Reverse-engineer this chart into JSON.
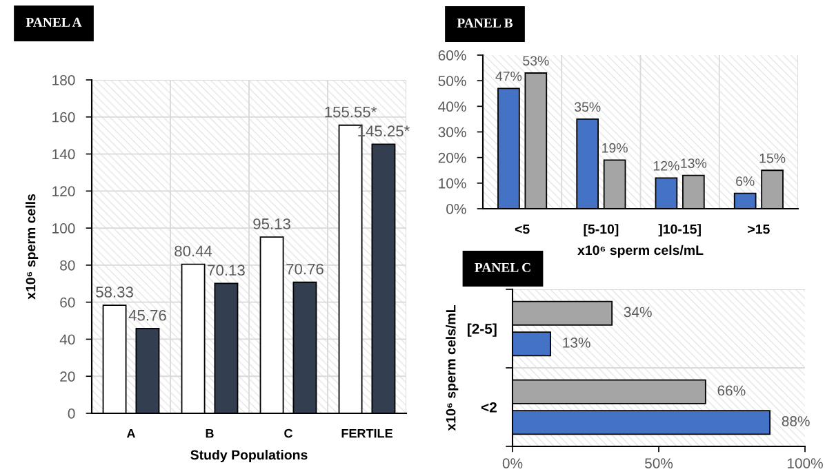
{
  "chart_data": [
    {
      "type": "bar",
      "title": "PANEL A",
      "xlabel": "Study Populations",
      "ylabel": "x10⁶ sperm cells",
      "categories": [
        "A",
        "B",
        "C",
        "FERTILE"
      ],
      "series": [
        {
          "color": "#ffffff",
          "values": [
            58.33,
            80.44,
            95.13,
            155.55
          ],
          "value_labels": [
            "58.33",
            "80.44",
            "95.13",
            "155.55*"
          ]
        },
        {
          "color": "#333f50",
          "values": [
            45.76,
            70.13,
            70.76,
            145.25
          ],
          "value_labels": [
            "45.76",
            "70.13",
            "70.76",
            "145.25*"
          ]
        }
      ],
      "ylim": [
        0,
        180
      ],
      "yticks": [
        0,
        20,
        40,
        60,
        80,
        100,
        120,
        140,
        160,
        180
      ],
      "grid": true
    },
    {
      "type": "bar",
      "title": "PANEL B",
      "xlabel": "x10⁶ sperm cels/mL",
      "categories": [
        "<5",
        "[5-10]",
        "]10-15]",
        ">15"
      ],
      "series": [
        {
          "color": "#4472c4",
          "values": [
            47,
            35,
            12,
            6
          ],
          "value_labels": [
            "47%",
            "35%",
            "12%",
            "6%"
          ]
        },
        {
          "color": "#a5a5a5",
          "values": [
            53,
            19,
            13,
            15
          ],
          "value_labels": [
            "53%",
            "19%",
            "13%",
            "15%"
          ]
        }
      ],
      "ylim": [
        0,
        60
      ],
      "yticks": [
        {
          "value": 0,
          "label": "0%"
        },
        {
          "value": 10,
          "label": "10%"
        },
        {
          "value": 20,
          "label": "20%"
        },
        {
          "value": 30,
          "label": "30%"
        },
        {
          "value": 40,
          "label": "40%"
        },
        {
          "value": 50,
          "label": "50%"
        },
        {
          "value": 60,
          "label": "60%"
        }
      ],
      "grid": "x"
    },
    {
      "type": "bar",
      "title": "PANEL C",
      "ylabel": "x10⁶ sperm cels/mL",
      "orientation": "horizontal",
      "categories": [
        "[2-5]",
        "<2"
      ],
      "series": [
        {
          "color": "#4472c4",
          "values": [
            13,
            88
          ],
          "value_labels": [
            "13%",
            "88%"
          ]
        },
        {
          "color": "#a5a5a5",
          "values": [
            34,
            66
          ],
          "value_labels": [
            "34%",
            "66%"
          ]
        }
      ],
      "xlim": [
        0,
        100
      ],
      "xticks": [
        {
          "value": 0,
          "label": "0%"
        },
        {
          "value": 50,
          "label": "50%"
        },
        {
          "value": 100,
          "label": "100%"
        }
      ],
      "grid": "y"
    }
  ]
}
